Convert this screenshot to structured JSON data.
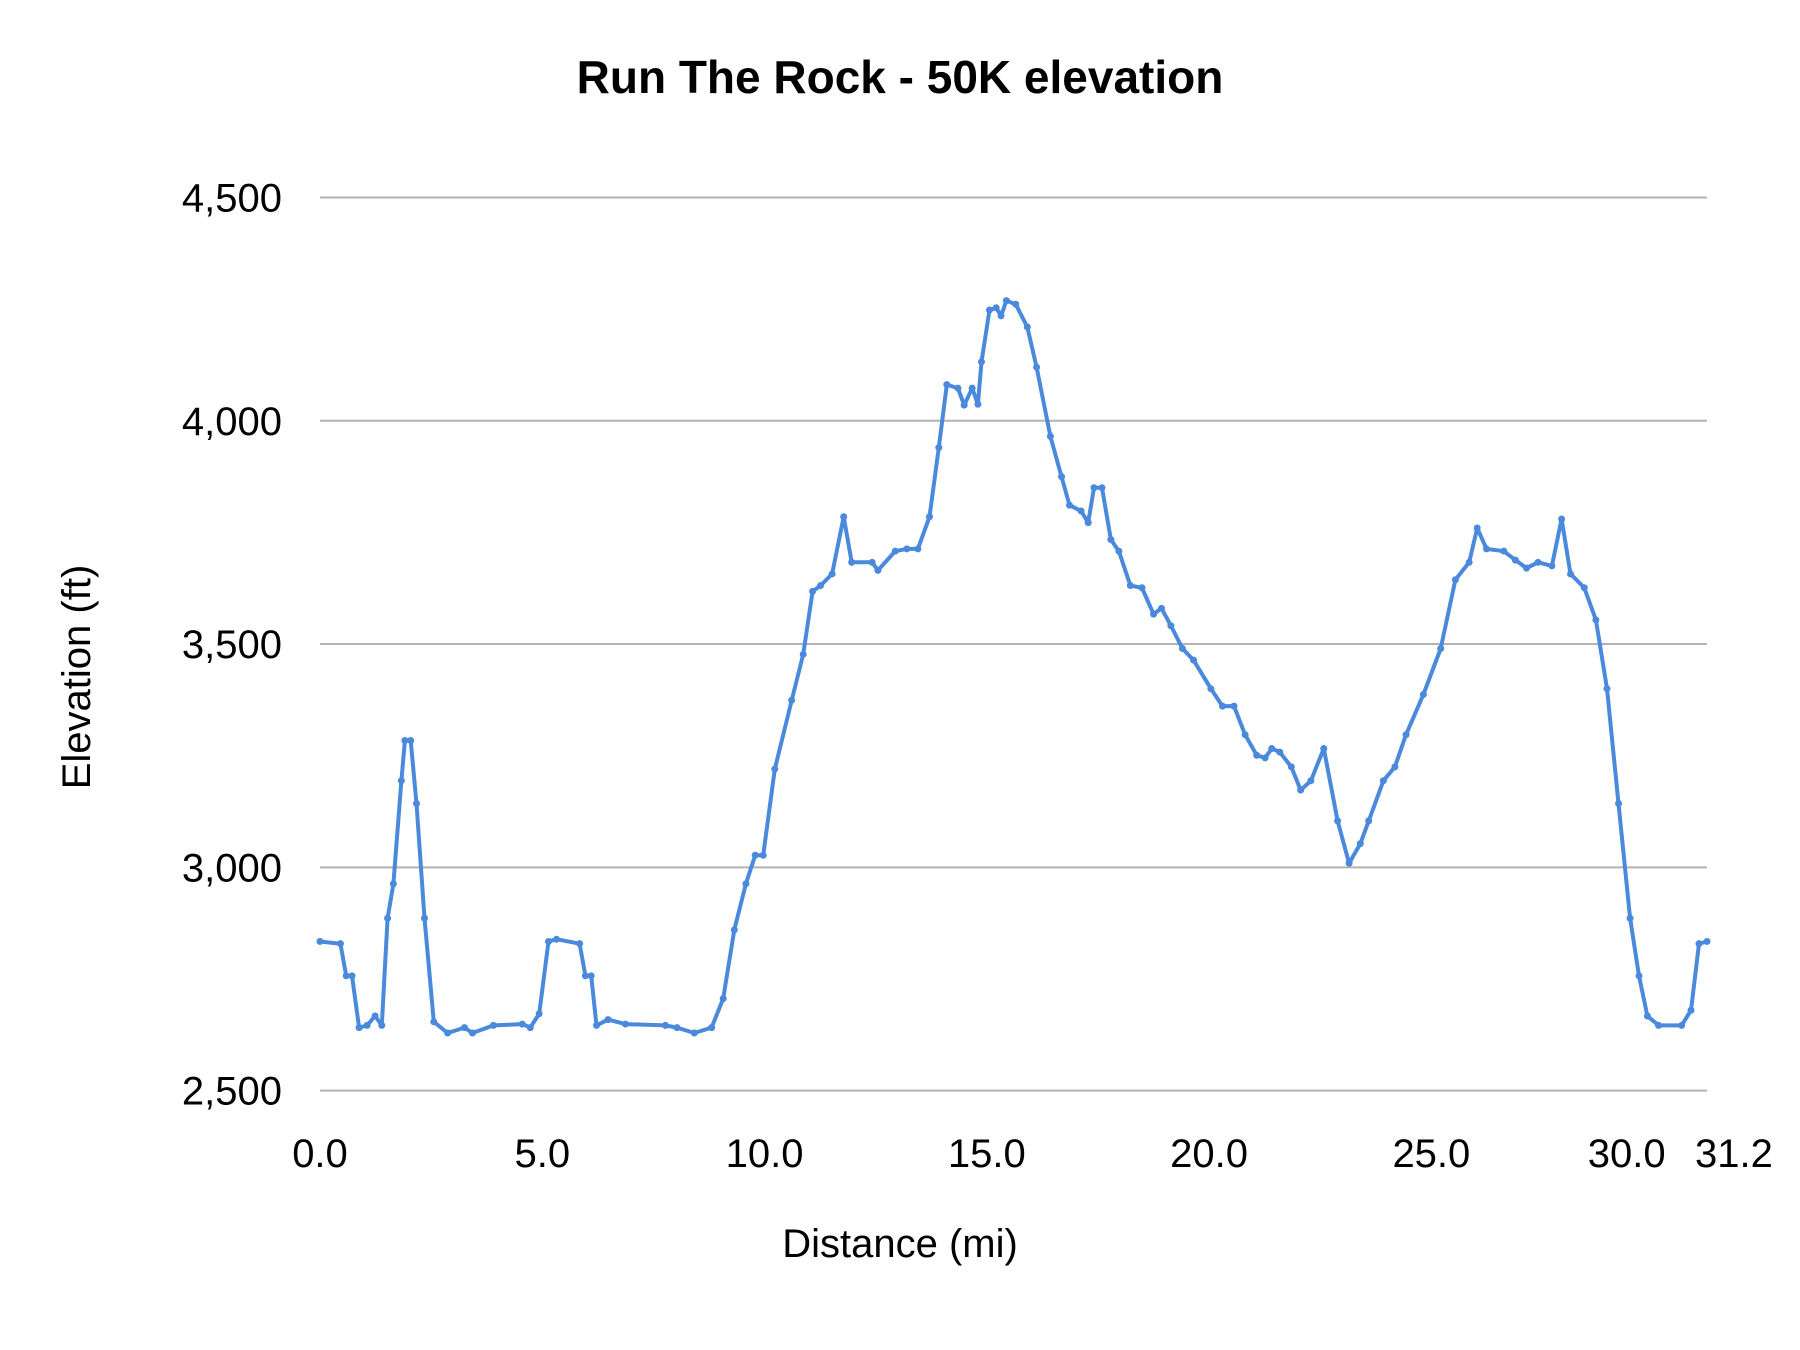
{
  "chart_data": {
    "type": "line",
    "title": "Run The Rock - 50K elevation",
    "xlabel": "Distance (mi)",
    "ylabel": "Elevation (ft)",
    "xlim": [
      0,
      31.2
    ],
    "ylim": [
      2500,
      4500
    ],
    "x_ticks": [
      "0.0",
      "5.0",
      "10.0",
      "15.0",
      "20.0",
      "25.0",
      "30.0",
      "31.2"
    ],
    "x_tick_values": [
      0,
      5,
      10,
      15,
      20,
      25,
      30,
      31.2
    ],
    "y_ticks": [
      "2,500",
      "3,000",
      "3,500",
      "4,000",
      "4,500"
    ],
    "y_tick_values": [
      2500,
      3000,
      3500,
      4000,
      4500
    ],
    "grid": "horizontal",
    "legend": "none",
    "line_color": "#4a89dc",
    "grid_color": "#b3b3b3",
    "series": [
      {
        "x": [
          0,
          0.46,
          0.59,
          0.72,
          0.88,
          1.06,
          1.24,
          1.39,
          1.52,
          1.65,
          1.83,
          1.91,
          2.04,
          2.17,
          2.35,
          2.56,
          2.87,
          3.25,
          3.43,
          3.9,
          4.55,
          4.73,
          4.93,
          5.14,
          5.32,
          5.84,
          5.97,
          6.1,
          6.22,
          6.48,
          6.87,
          7.77,
          8.03,
          8.42,
          8.81,
          9.07,
          9.32,
          9.58,
          9.79,
          9.97,
          10.23,
          10.61,
          10.87,
          11.08,
          11.26,
          11.52,
          11.78,
          11.96,
          12.42,
          12.55,
          12.94,
          13.2,
          13.45,
          13.71,
          13.92,
          14.1,
          14.35,
          14.49,
          14.67,
          14.8,
          14.88,
          15.06,
          15.21,
          15.32,
          15.44,
          15.65,
          15.91,
          16.12,
          16.43,
          16.68,
          16.86,
          17.12,
          17.28,
          17.41,
          17.59,
          17.79,
          17.97,
          18.23,
          18.49,
          18.75,
          18.93,
          19.14,
          19.4,
          19.65,
          20.04,
          20.3,
          20.56,
          20.81,
          21.07,
          21.26,
          21.41,
          21.59,
          21.85,
          22.06,
          22.29,
          22.58,
          22.89,
          23.15,
          23.4,
          23.59,
          23.92,
          24.18,
          24.43,
          24.82,
          25.21,
          25.54,
          25.85,
          26.03,
          26.24,
          26.63,
          26.89,
          27.14,
          27.4,
          27.71,
          27.93,
          28.13,
          28.44,
          28.7,
          28.95,
          29.21,
          29.47,
          29.67,
          29.86,
          30.11,
          30.63,
          30.84,
          31.02,
          31.2
        ],
        "y": [
          2834,
          2829,
          2757,
          2757,
          2641,
          2646,
          2667,
          2646,
          2886,
          2963,
          3194,
          3284,
          3284,
          3143,
          2886,
          2654,
          2629,
          2641,
          2629,
          2646,
          2649,
          2641,
          2672,
          2834,
          2839,
          2829,
          2757,
          2757,
          2646,
          2659,
          2649,
          2646,
          2641,
          2629,
          2641,
          2706,
          2860,
          2963,
          3027,
          3027,
          3220,
          3374,
          3477,
          3618,
          3631,
          3657,
          3785,
          3683,
          3683,
          3665,
          3708,
          3713,
          3713,
          3785,
          3940,
          4081,
          4073,
          4035,
          4073,
          4037,
          4132,
          4248,
          4253,
          4235,
          4269,
          4261,
          4210,
          4120,
          3965,
          3875,
          3811,
          3798,
          3772,
          3850,
          3850,
          3734,
          3708,
          3631,
          3626,
          3567,
          3580,
          3541,
          3490,
          3464,
          3400,
          3361,
          3361,
          3297,
          3251,
          3245,
          3266,
          3258,
          3225,
          3173,
          3194,
          3266,
          3104,
          3009,
          3053,
          3104,
          3194,
          3225,
          3297,
          3387,
          3490,
          3644,
          3683,
          3760,
          3713,
          3708,
          3688,
          3670,
          3683,
          3675,
          3780,
          3657,
          3626,
          3554,
          3400,
          3143,
          2886,
          2757,
          2667,
          2646,
          2646,
          2680,
          2829,
          2834
        ]
      }
    ]
  }
}
